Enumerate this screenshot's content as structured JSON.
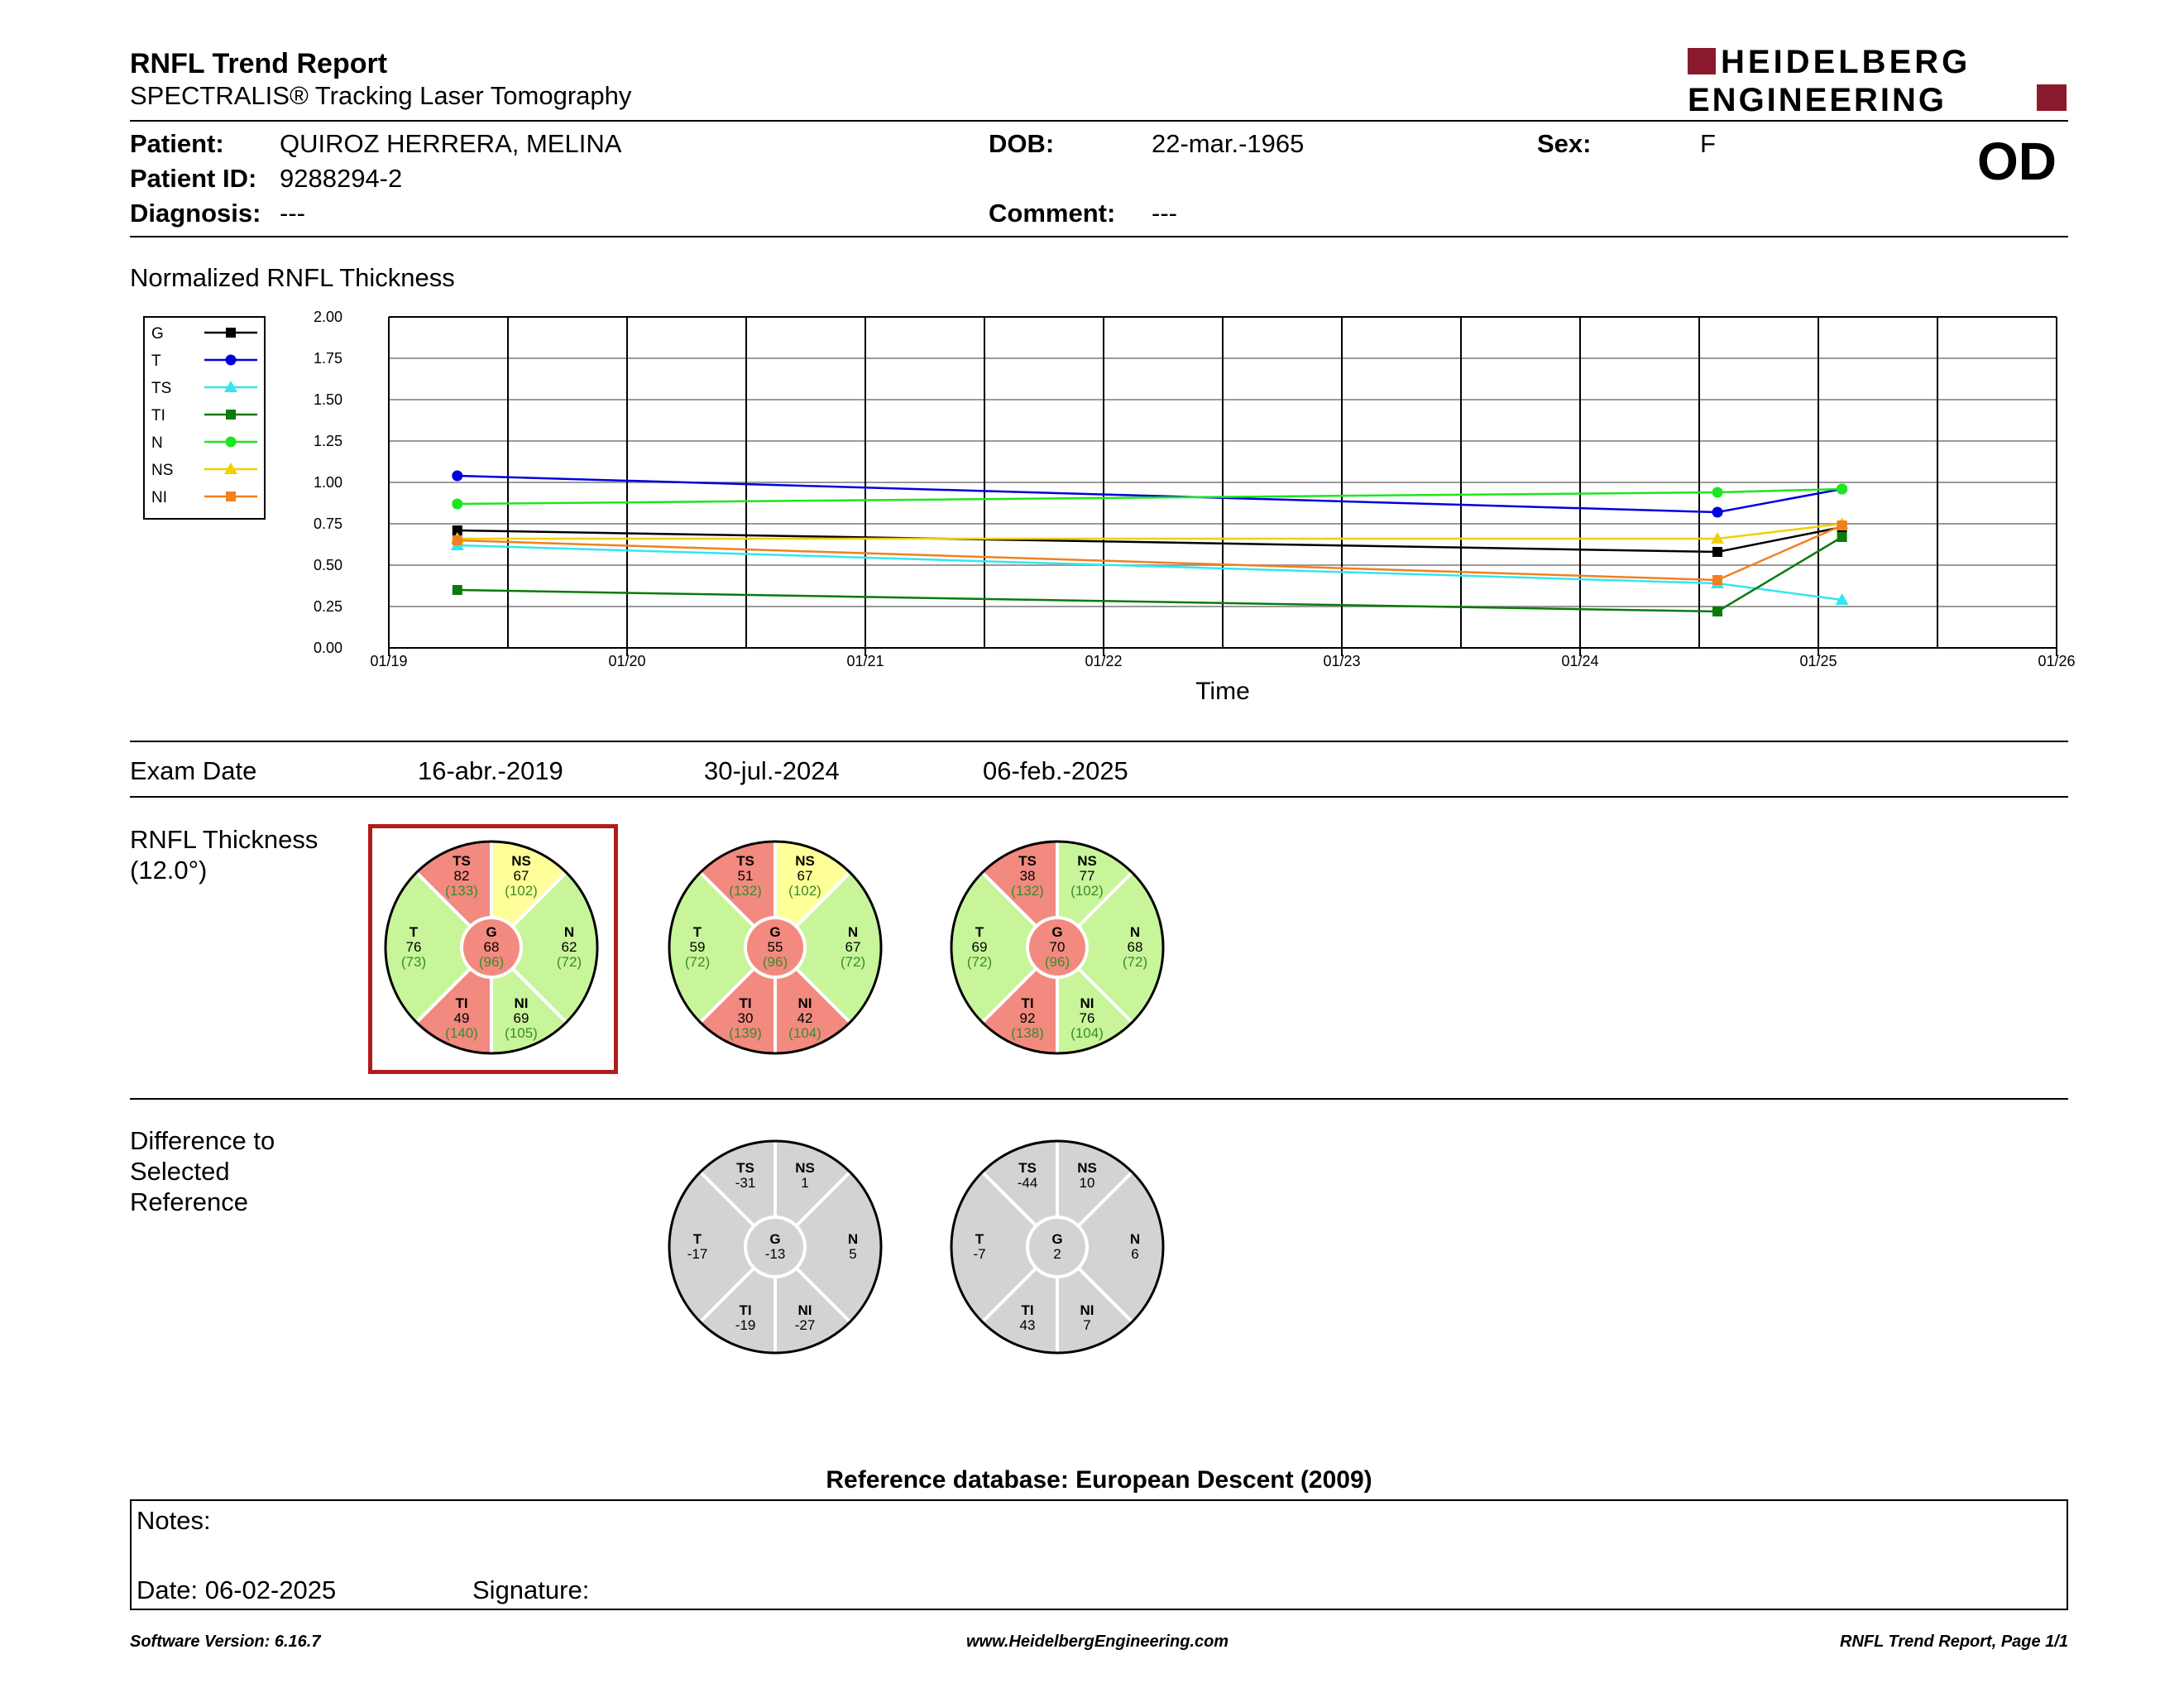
{
  "header": {
    "title": "RNFL Trend Report",
    "subtitle": "SPECTRALIS® Tracking Laser Tomography",
    "brand_line1": "HEIDELBERG",
    "brand_line2": "ENGINEERING",
    "brand_color": "#8b1a2e",
    "eye": "OD"
  },
  "patient": {
    "patient_label": "Patient:",
    "patient_value": "QUIROZ HERRERA, MELINA",
    "id_label": "Patient ID:",
    "id_value": "9288294-2",
    "diagnosis_label": "Diagnosis:",
    "diagnosis_value": "---",
    "dob_label": "DOB:",
    "dob_value": "22-mar.-1965",
    "comment_label": "Comment:",
    "comment_value": "---",
    "sex_label": "Sex:",
    "sex_value": "F"
  },
  "chart_data": {
    "type": "line",
    "title": "Normalized RNFL Thickness",
    "xlabel": "Time",
    "ylabel": "",
    "ylim": [
      0,
      2
    ],
    "yticks": [
      "0.00",
      "0.25",
      "0.50",
      "0.75",
      "1.00",
      "1.25",
      "1.50",
      "1.75",
      "2.00"
    ],
    "xticks": [
      "01/19",
      "01/20",
      "01/21",
      "01/22",
      "01/23",
      "01/24",
      "01/25",
      "01/26"
    ],
    "x": [
      "2019-04-16",
      "2024-07-30",
      "2025-02-06"
    ],
    "grid": true,
    "legend_position": "left",
    "series": [
      {
        "name": "G",
        "color": "#000000",
        "marker": "square",
        "values": [
          0.71,
          0.58,
          0.73
        ]
      },
      {
        "name": "T",
        "color": "#0000dd",
        "marker": "circle",
        "values": [
          1.04,
          0.82,
          0.96
        ]
      },
      {
        "name": "TS",
        "color": "#33e6f0",
        "marker": "triangle",
        "values": [
          0.62,
          0.39,
          0.29
        ]
      },
      {
        "name": "TI",
        "color": "#0a7a0a",
        "marker": "square",
        "values": [
          0.35,
          0.22,
          0.67
        ]
      },
      {
        "name": "N",
        "color": "#1ee61e",
        "marker": "circle",
        "values": [
          0.87,
          0.94,
          0.96
        ]
      },
      {
        "name": "NS",
        "color": "#f0d000",
        "marker": "triangle",
        "values": [
          0.66,
          0.66,
          0.75
        ]
      },
      {
        "name": "NI",
        "color": "#f08020",
        "marker": "square",
        "values": [
          0.65,
          0.41,
          0.74
        ]
      }
    ]
  },
  "exam": {
    "label": "Exam Date",
    "dates": [
      "16-abr.-2019",
      "30-jul.-2024",
      "06-feb.-2025"
    ]
  },
  "thickness": {
    "label_line1": "RNFL Thickness",
    "label_line2": "(12.0°)",
    "charts": [
      {
        "selected": true,
        "G": {
          "val": "68",
          "ref": "(96)",
          "color": "#f28a80"
        },
        "TS": {
          "val": "82",
          "ref": "(133)",
          "color": "#f28a80"
        },
        "NS": {
          "val": "67",
          "ref": "(102)",
          "color": "#ffff99"
        },
        "T": {
          "val": "76",
          "ref": "(73)",
          "color": "#c8f59a"
        },
        "N": {
          "val": "62",
          "ref": "(72)",
          "color": "#c8f59a"
        },
        "TI": {
          "val": "49",
          "ref": "(140)",
          "color": "#f28a80"
        },
        "NI": {
          "val": "69",
          "ref": "(105)",
          "color": "#c8f59a"
        }
      },
      {
        "selected": false,
        "G": {
          "val": "55",
          "ref": "(96)",
          "color": "#f28a80"
        },
        "TS": {
          "val": "51",
          "ref": "(132)",
          "color": "#f28a80"
        },
        "NS": {
          "val": "67",
          "ref": "(102)",
          "color": "#ffff99"
        },
        "T": {
          "val": "59",
          "ref": "(72)",
          "color": "#c8f59a"
        },
        "N": {
          "val": "67",
          "ref": "(72)",
          "color": "#c8f59a"
        },
        "TI": {
          "val": "30",
          "ref": "(139)",
          "color": "#f28a80"
        },
        "NI": {
          "val": "42",
          "ref": "(104)",
          "color": "#f28a80"
        }
      },
      {
        "selected": false,
        "G": {
          "val": "70",
          "ref": "(96)",
          "color": "#f28a80"
        },
        "TS": {
          "val": "38",
          "ref": "(132)",
          "color": "#f28a80"
        },
        "NS": {
          "val": "77",
          "ref": "(102)",
          "color": "#c8f59a"
        },
        "T": {
          "val": "69",
          "ref": "(72)",
          "color": "#c8f59a"
        },
        "N": {
          "val": "68",
          "ref": "(72)",
          "color": "#c8f59a"
        },
        "TI": {
          "val": "92",
          "ref": "(138)",
          "color": "#f28a80"
        },
        "NI": {
          "val": "76",
          "ref": "(104)",
          "color": "#c8f59a"
        }
      }
    ]
  },
  "difference": {
    "label_line1": "Difference to",
    "label_line2": "Selected",
    "label_line3": "Reference",
    "color": "#d3d3d3",
    "charts": [
      {
        "G": "-13",
        "TS": "-31",
        "NS": "1",
        "T": "-17",
        "N": "5",
        "TI": "-19",
        "NI": "-27"
      },
      {
        "G": "2",
        "TS": "-44",
        "NS": "10",
        "T": "-7",
        "N": "6",
        "TI": "43",
        "NI": "7"
      }
    ]
  },
  "reference_db": "Reference database: European Descent (2009)",
  "notes": {
    "notes_label": "Notes:",
    "date_label": "Date: 06-02-2025",
    "signature_label": "Signature:"
  },
  "footer": {
    "software": "Software Version: 6.16.7",
    "website": "www.HeidelbergEngineering.com",
    "page": "RNFL Trend Report, Page 1/1"
  }
}
